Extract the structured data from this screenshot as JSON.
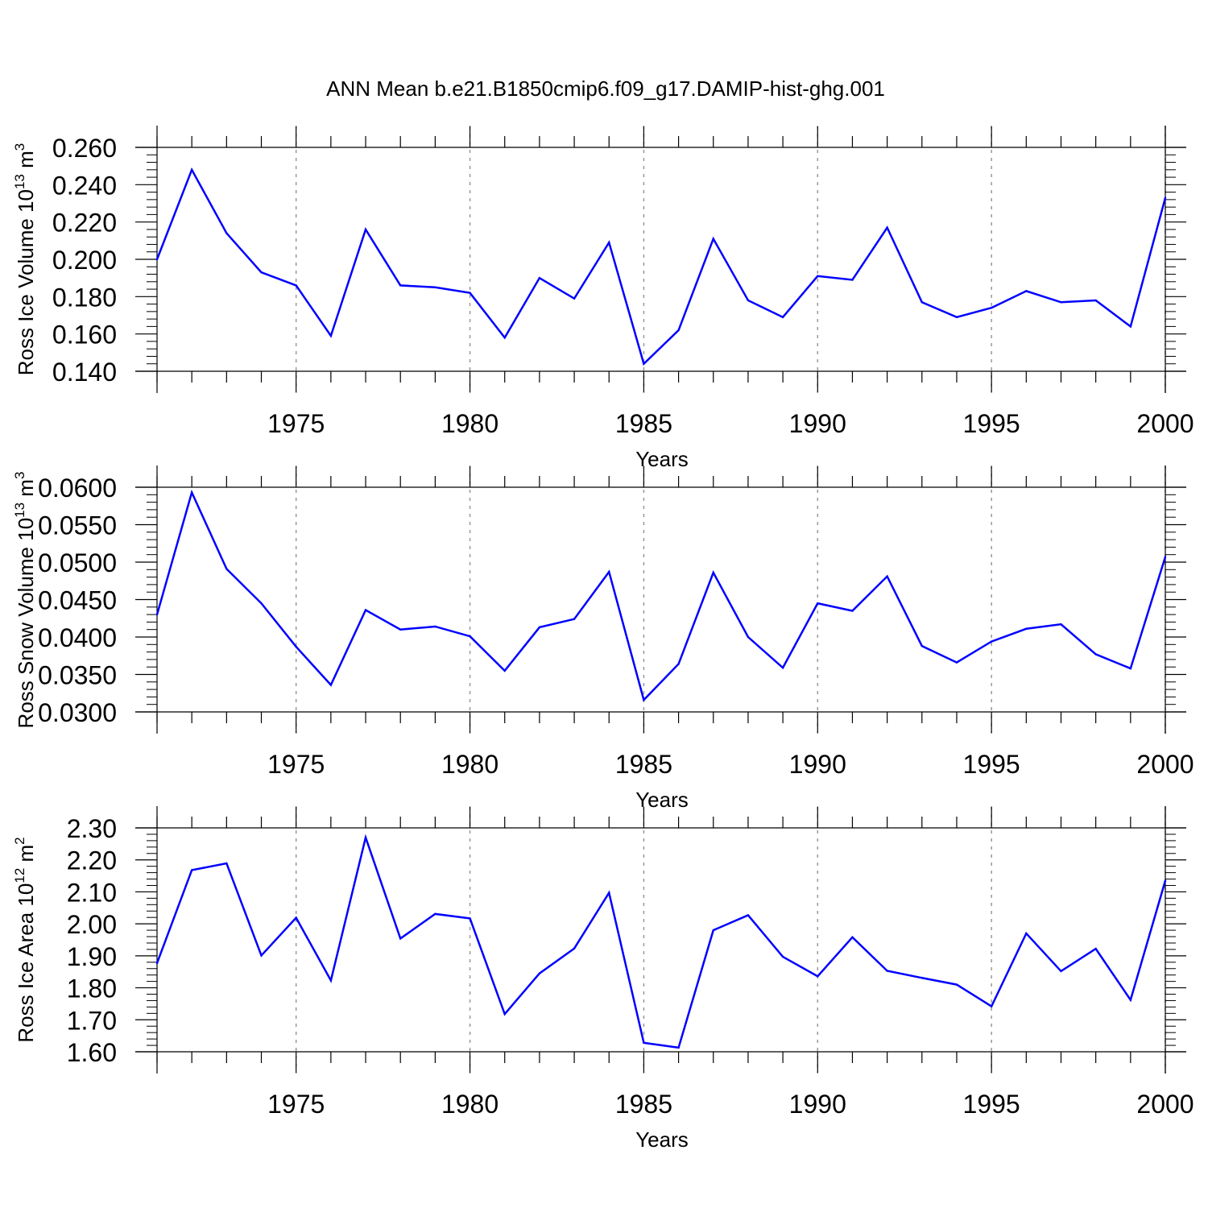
{
  "title": "ANN Mean b.e21.B1850cmip6.f09_g17.DAMIP-hist-ghg.001",
  "line_color": "#0000ff",
  "chart_data": [
    {
      "type": "line",
      "ylabel_main": "Ross Ice Volume 10",
      "ylabel_exp": "13",
      "ylabel_unit": "m",
      "ylabel_unit_exp": "3",
      "xlabel": "Years",
      "xlim": [
        1971,
        2000
      ],
      "ylim": [
        0.14,
        0.26
      ],
      "yticks": [
        "0.140",
        "0.160",
        "0.180",
        "0.200",
        "0.220",
        "0.240",
        "0.260"
      ],
      "xticks": [
        "1975",
        "1980",
        "1985",
        "1990",
        "1995",
        "2000"
      ],
      "x": [
        1971,
        1972,
        1973,
        1974,
        1975,
        1976,
        1977,
        1978,
        1979,
        1980,
        1981,
        1982,
        1983,
        1984,
        1985,
        1986,
        1987,
        1988,
        1989,
        1990,
        1991,
        1992,
        1993,
        1994,
        1995,
        1996,
        1997,
        1998,
        1999,
        2000
      ],
      "series": [
        {
          "name": "Ross Ice Volume",
          "values": [
            0.2,
            0.248,
            0.214,
            0.193,
            0.186,
            0.159,
            0.216,
            0.186,
            0.185,
            0.182,
            0.158,
            0.19,
            0.179,
            0.209,
            0.144,
            0.162,
            0.211,
            0.178,
            0.169,
            0.191,
            0.189,
            0.217,
            0.177,
            0.169,
            0.174,
            0.183,
            0.177,
            0.178,
            0.164,
            0.233
          ]
        }
      ]
    },
    {
      "type": "line",
      "ylabel_main": "Ross Snow Volume 10",
      "ylabel_exp": "13",
      "ylabel_unit": "m",
      "ylabel_unit_exp": "3",
      "xlabel": "Years",
      "xlim": [
        1971,
        2000
      ],
      "ylim": [
        0.03,
        0.06
      ],
      "yticks": [
        "0.0300",
        "0.0350",
        "0.0400",
        "0.0450",
        "0.0500",
        "0.0550",
        "0.0600"
      ],
      "xticks": [
        "1975",
        "1980",
        "1985",
        "1990",
        "1995",
        "2000"
      ],
      "x": [
        1971,
        1972,
        1973,
        1974,
        1975,
        1976,
        1977,
        1978,
        1979,
        1980,
        1981,
        1982,
        1983,
        1984,
        1985,
        1986,
        1987,
        1988,
        1989,
        1990,
        1991,
        1992,
        1993,
        1994,
        1995,
        1996,
        1997,
        1998,
        1999,
        2000
      ],
      "series": [
        {
          "name": "Ross Snow Volume",
          "values": [
            0.043,
            0.0593,
            0.0491,
            0.0445,
            0.0387,
            0.0336,
            0.0436,
            0.041,
            0.0414,
            0.0401,
            0.0355,
            0.0413,
            0.0424,
            0.0487,
            0.0316,
            0.0364,
            0.0486,
            0.04,
            0.0359,
            0.0445,
            0.0435,
            0.0481,
            0.0388,
            0.0366,
            0.0394,
            0.0411,
            0.0417,
            0.0377,
            0.0358,
            0.0507
          ]
        }
      ]
    },
    {
      "type": "line",
      "ylabel_main": "Ross Ice Area 10",
      "ylabel_exp": "12",
      "ylabel_unit": "m",
      "ylabel_unit_exp": "2",
      "xlabel": "Years",
      "xlim": [
        1971,
        2000
      ],
      "ylim": [
        1.6,
        2.3
      ],
      "yticks": [
        "1.60",
        "1.70",
        "1.80",
        "1.90",
        "2.00",
        "2.10",
        "2.20",
        "2.30"
      ],
      "xticks": [
        "1975",
        "1980",
        "1985",
        "1990",
        "1995",
        "2000"
      ],
      "x": [
        1971,
        1972,
        1973,
        1974,
        1975,
        1976,
        1977,
        1978,
        1979,
        1980,
        1981,
        1982,
        1983,
        1984,
        1985,
        1986,
        1987,
        1988,
        1989,
        1990,
        1991,
        1992,
        1993,
        1994,
        1995,
        1996,
        1997,
        1998,
        1999,
        2000
      ],
      "series": [
        {
          "name": "Ross Ice Area",
          "values": [
            1.877,
            2.168,
            2.189,
            1.901,
            2.019,
            1.823,
            2.27,
            1.954,
            2.031,
            2.017,
            1.718,
            1.845,
            1.923,
            2.097,
            1.628,
            1.613,
            1.98,
            2.027,
            1.897,
            1.836,
            1.958,
            1.853,
            1.831,
            1.81,
            1.742,
            1.97,
            1.852,
            1.922,
            1.762,
            2.135
          ]
        }
      ]
    }
  ]
}
